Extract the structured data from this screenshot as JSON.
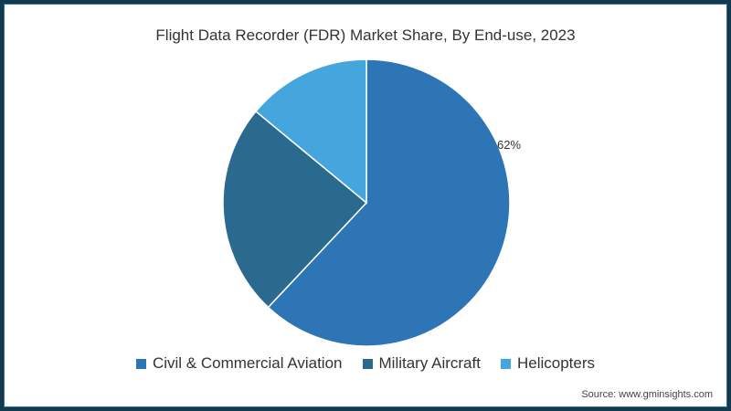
{
  "title": "Flight Data Recorder (FDR) Market Share, By End-use, 2023",
  "source": "Source: www.gminsights.com",
  "data_label": "62%",
  "legend": [
    {
      "label": "Civil & Commercial Aviation",
      "color": "#2e75b6"
    },
    {
      "label": "Military Aircraft",
      "color": "#2a6a8e"
    },
    {
      "label": "Helicopters",
      "color": "#45a6dd"
    }
  ],
  "chart_data": {
    "type": "pie",
    "title": "Flight Data Recorder (FDR) Market Share, By End-use, 2023",
    "categories": [
      "Civil & Commercial Aviation",
      "Military Aircraft",
      "Helicopters"
    ],
    "values": [
      62,
      24,
      14
    ],
    "labels_shown": {
      "Civil & Commercial Aviation": "62%"
    },
    "colors": [
      "#2e75b6",
      "#2a6a8e",
      "#45a6dd"
    ],
    "legend_position": "bottom",
    "start_angle": "12 o'clock, clockwise"
  }
}
